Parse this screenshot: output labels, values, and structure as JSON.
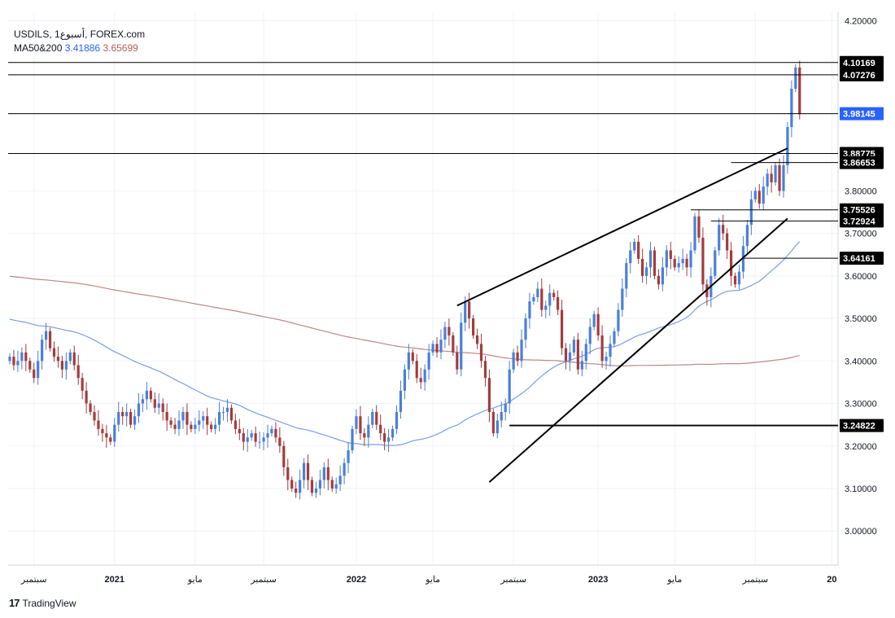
{
  "legend": {
    "symbol_line": "USDILS, أسبوع1, FOREX.com",
    "ma_label": "MA50&200",
    "ma50_value": "3.41886",
    "ma200_value": "3.65699"
  },
  "branding": {
    "name": "TradingView",
    "logo_text": "17"
  },
  "colors": {
    "up": "#4a7fd9",
    "down": "#a33c3c",
    "ma50": "#7a9ee0",
    "ma200": "#b98a86",
    "line": "#000000",
    "current": "#2962ff"
  },
  "chart_data": {
    "type": "candlestick",
    "title": "USDILS, أسبوع1, FOREX.com",
    "ylim": [
      2.92,
      4.22
    ],
    "y_ticks": [
      "4.20000",
      "3.80000",
      "3.70000",
      "3.60000",
      "3.50000",
      "3.40000",
      "3.30000",
      "3.20000",
      "3.10000",
      "3.00000"
    ],
    "x_ticks": [
      "سبتمبر",
      "2021",
      "مايو",
      "سبتمبر",
      "2022",
      "مايو",
      "سبتمبر",
      "2023",
      "مايو",
      "سبتمبر",
      "20"
    ],
    "price_labels": [
      {
        "value": "4.10169",
        "style": "black"
      },
      {
        "value": "4.07276",
        "style": "black"
      },
      {
        "value": "3.98145",
        "style": "blue"
      },
      {
        "value": "3.88775",
        "style": "black"
      },
      {
        "value": "3.86653",
        "style": "black"
      },
      {
        "value": "3.75526",
        "style": "black"
      },
      {
        "value": "3.72924",
        "style": "black"
      },
      {
        "value": "3.64161",
        "style": "black"
      },
      {
        "value": "3.24822",
        "style": "black"
      }
    ],
    "horizontal_levels": [
      4.10169,
      4.07276,
      3.98145,
      3.88775,
      3.86653,
      3.75526,
      3.72924,
      3.64161,
      3.24822
    ],
    "trendlines": [
      {
        "name": "upper",
        "from": {
          "bar": 111,
          "price": 3.53
        },
        "to": {
          "bar": 193,
          "price": 3.9
        }
      },
      {
        "name": "lower",
        "from": {
          "bar": 119,
          "price": 3.115
        },
        "to": {
          "bar": 193,
          "price": 3.735
        }
      }
    ],
    "closes": [
      3.41,
      3.39,
      3.4,
      3.42,
      3.4,
      3.38,
      3.36,
      3.4,
      3.45,
      3.47,
      3.43,
      3.41,
      3.4,
      3.38,
      3.4,
      3.42,
      3.39,
      3.36,
      3.33,
      3.3,
      3.28,
      3.26,
      3.24,
      3.23,
      3.22,
      3.21,
      3.25,
      3.28,
      3.27,
      3.28,
      3.25,
      3.27,
      3.3,
      3.31,
      3.33,
      3.31,
      3.29,
      3.3,
      3.28,
      3.26,
      3.25,
      3.24,
      3.26,
      3.28,
      3.25,
      3.24,
      3.25,
      3.26,
      3.27,
      3.25,
      3.24,
      3.25,
      3.28,
      3.28,
      3.29,
      3.26,
      3.24,
      3.23,
      3.21,
      3.22,
      3.23,
      3.21,
      3.21,
      3.22,
      3.23,
      3.24,
      3.22,
      3.2,
      3.15,
      3.12,
      3.1,
      3.09,
      3.12,
      3.16,
      3.12,
      3.09,
      3.1,
      3.12,
      3.15,
      3.12,
      3.1,
      3.11,
      3.13,
      3.16,
      3.19,
      3.24,
      3.27,
      3.23,
      3.22,
      3.25,
      3.28,
      3.25,
      3.23,
      3.21,
      3.22,
      3.24,
      3.28,
      3.33,
      3.38,
      3.42,
      3.4,
      3.36,
      3.35,
      3.38,
      3.42,
      3.44,
      3.42,
      3.45,
      3.48,
      3.46,
      3.42,
      3.38,
      3.49,
      3.54,
      3.5,
      3.46,
      3.44,
      3.4,
      3.36,
      3.28,
      3.23,
      3.26,
      3.28,
      3.3,
      3.38,
      3.42,
      3.4,
      3.45,
      3.5,
      3.54,
      3.55,
      3.57,
      3.52,
      3.53,
      3.56,
      3.55,
      3.52,
      3.43,
      3.4,
      3.42,
      3.45,
      3.38,
      3.4,
      3.44,
      3.48,
      3.51,
      3.46,
      3.4,
      3.41,
      3.44,
      3.47,
      3.52,
      3.57,
      3.63,
      3.66,
      3.68,
      3.64,
      3.6,
      3.62,
      3.66,
      3.6,
      3.58,
      3.62,
      3.66,
      3.64,
      3.62,
      3.63,
      3.64,
      3.62,
      3.66,
      3.74,
      3.69,
      3.58,
      3.55,
      3.6,
      3.66,
      3.72,
      3.7,
      3.66,
      3.6,
      3.58,
      3.61,
      3.67,
      3.72,
      3.78,
      3.8,
      3.77,
      3.81,
      3.84,
      3.82,
      3.86,
      3.8,
      3.86,
      3.95,
      4.04,
      4.09,
      3.98
    ]
  }
}
